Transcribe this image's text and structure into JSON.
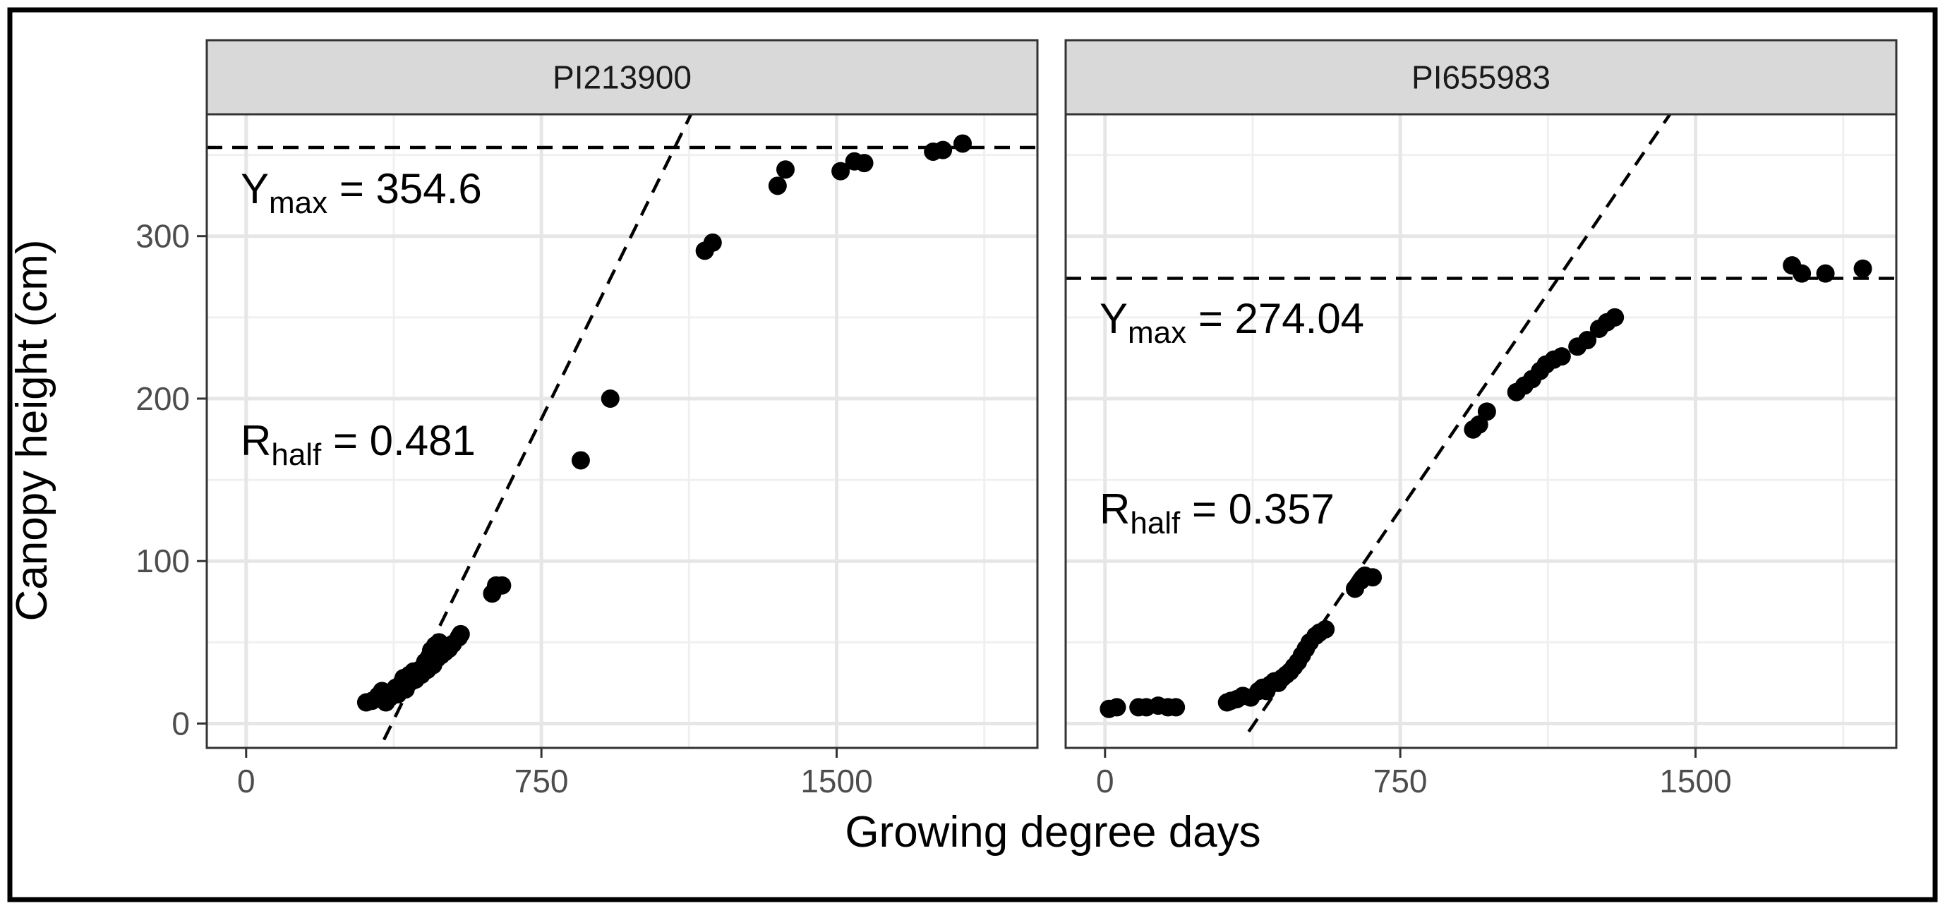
{
  "chart_data": {
    "type": "scatter",
    "xlabel": "Growing degree days",
    "ylabel": "Canopy height (cm)",
    "xlim": [
      -100,
      2010
    ],
    "ylim": [
      -15,
      375
    ],
    "x_ticks": [
      0,
      750,
      1500
    ],
    "y_ticks": [
      0,
      100,
      200,
      300
    ],
    "grid": true,
    "facet_titles": [
      "PI213900",
      "PI655983"
    ],
    "panels": [
      {
        "title": "PI213900",
        "ymax_label": {
          "symbol": "Y",
          "subscript": "max",
          "text": " = 354.6"
        },
        "rhalf_label": {
          "symbol": "R",
          "subscript": "half",
          "text": " = 0.481"
        },
        "ymax_value": 354.6,
        "rhalf_value": 0.481,
        "fit_line": {
          "x": [
            350,
            1130
          ],
          "y": [
            -10,
            375
          ]
        },
        "points": [
          {
            "x": 305,
            "y": 13
          },
          {
            "x": 320,
            "y": 14
          },
          {
            "x": 335,
            "y": 17
          },
          {
            "x": 345,
            "y": 20
          },
          {
            "x": 355,
            "y": 13
          },
          {
            "x": 365,
            "y": 16
          },
          {
            "x": 380,
            "y": 22
          },
          {
            "x": 385,
            "y": 18
          },
          {
            "x": 395,
            "y": 25
          },
          {
            "x": 400,
            "y": 28
          },
          {
            "x": 405,
            "y": 21
          },
          {
            "x": 410,
            "y": 24
          },
          {
            "x": 415,
            "y": 30
          },
          {
            "x": 420,
            "y": 26
          },
          {
            "x": 425,
            "y": 32
          },
          {
            "x": 430,
            "y": 27
          },
          {
            "x": 435,
            "y": 29
          },
          {
            "x": 440,
            "y": 33
          },
          {
            "x": 445,
            "y": 30
          },
          {
            "x": 450,
            "y": 35
          },
          {
            "x": 455,
            "y": 38
          },
          {
            "x": 460,
            "y": 33
          },
          {
            "x": 465,
            "y": 41
          },
          {
            "x": 470,
            "y": 45
          },
          {
            "x": 475,
            "y": 36
          },
          {
            "x": 480,
            "y": 48
          },
          {
            "x": 485,
            "y": 40
          },
          {
            "x": 490,
            "y": 50
          },
          {
            "x": 495,
            "y": 42
          },
          {
            "x": 500,
            "y": 47
          },
          {
            "x": 505,
            "y": 44
          },
          {
            "x": 515,
            "y": 46
          },
          {
            "x": 525,
            "y": 49
          },
          {
            "x": 540,
            "y": 53
          },
          {
            "x": 545,
            "y": 55
          },
          {
            "x": 625,
            "y": 80
          },
          {
            "x": 635,
            "y": 85
          },
          {
            "x": 650,
            "y": 85
          },
          {
            "x": 850,
            "y": 162
          },
          {
            "x": 925,
            "y": 200
          },
          {
            "x": 1165,
            "y": 291
          },
          {
            "x": 1185,
            "y": 296
          },
          {
            "x": 1350,
            "y": 331
          },
          {
            "x": 1370,
            "y": 341
          },
          {
            "x": 1510,
            "y": 340
          },
          {
            "x": 1545,
            "y": 346
          },
          {
            "x": 1570,
            "y": 345
          },
          {
            "x": 1745,
            "y": 352
          },
          {
            "x": 1770,
            "y": 353
          },
          {
            "x": 1820,
            "y": 357
          }
        ]
      },
      {
        "title": "PI655983",
        "ymax_label": {
          "symbol": "Y",
          "subscript": "max",
          "text": " = 274.04"
        },
        "rhalf_label": {
          "symbol": "R",
          "subscript": "half",
          "text": " = 0.357"
        },
        "ymax_value": 274.04,
        "rhalf_value": 0.357,
        "fit_line": {
          "x": [
            365,
            1435
          ],
          "y": [
            -5,
            375
          ]
        },
        "points": [
          {
            "x": 10,
            "y": 9
          },
          {
            "x": 30,
            "y": 10
          },
          {
            "x": 85,
            "y": 10
          },
          {
            "x": 105,
            "y": 10
          },
          {
            "x": 135,
            "y": 11
          },
          {
            "x": 160,
            "y": 10
          },
          {
            "x": 180,
            "y": 10
          },
          {
            "x": 310,
            "y": 13
          },
          {
            "x": 320,
            "y": 14
          },
          {
            "x": 335,
            "y": 15
          },
          {
            "x": 350,
            "y": 17
          },
          {
            "x": 370,
            "y": 16
          },
          {
            "x": 390,
            "y": 20
          },
          {
            "x": 400,
            "y": 22
          },
          {
            "x": 410,
            "y": 20
          },
          {
            "x": 420,
            "y": 24
          },
          {
            "x": 430,
            "y": 26
          },
          {
            "x": 440,
            "y": 25
          },
          {
            "x": 450,
            "y": 28
          },
          {
            "x": 460,
            "y": 30
          },
          {
            "x": 470,
            "y": 32
          },
          {
            "x": 480,
            "y": 35
          },
          {
            "x": 490,
            "y": 38
          },
          {
            "x": 500,
            "y": 42
          },
          {
            "x": 510,
            "y": 46
          },
          {
            "x": 520,
            "y": 50
          },
          {
            "x": 535,
            "y": 54
          },
          {
            "x": 545,
            "y": 56
          },
          {
            "x": 560,
            "y": 58
          },
          {
            "x": 635,
            "y": 83
          },
          {
            "x": 650,
            "y": 88
          },
          {
            "x": 660,
            "y": 91
          },
          {
            "x": 680,
            "y": 90
          },
          {
            "x": 935,
            "y": 181
          },
          {
            "x": 950,
            "y": 184
          },
          {
            "x": 970,
            "y": 192
          },
          {
            "x": 1045,
            "y": 204
          },
          {
            "x": 1065,
            "y": 208
          },
          {
            "x": 1085,
            "y": 212
          },
          {
            "x": 1105,
            "y": 217
          },
          {
            "x": 1120,
            "y": 221
          },
          {
            "x": 1140,
            "y": 224
          },
          {
            "x": 1160,
            "y": 226
          },
          {
            "x": 1200,
            "y": 232
          },
          {
            "x": 1225,
            "y": 236
          },
          {
            "x": 1255,
            "y": 243
          },
          {
            "x": 1275,
            "y": 247
          },
          {
            "x": 1295,
            "y": 250
          },
          {
            "x": 1745,
            "y": 282
          },
          {
            "x": 1770,
            "y": 277
          },
          {
            "x": 1830,
            "y": 277
          },
          {
            "x": 1925,
            "y": 280
          }
        ]
      }
    ]
  }
}
